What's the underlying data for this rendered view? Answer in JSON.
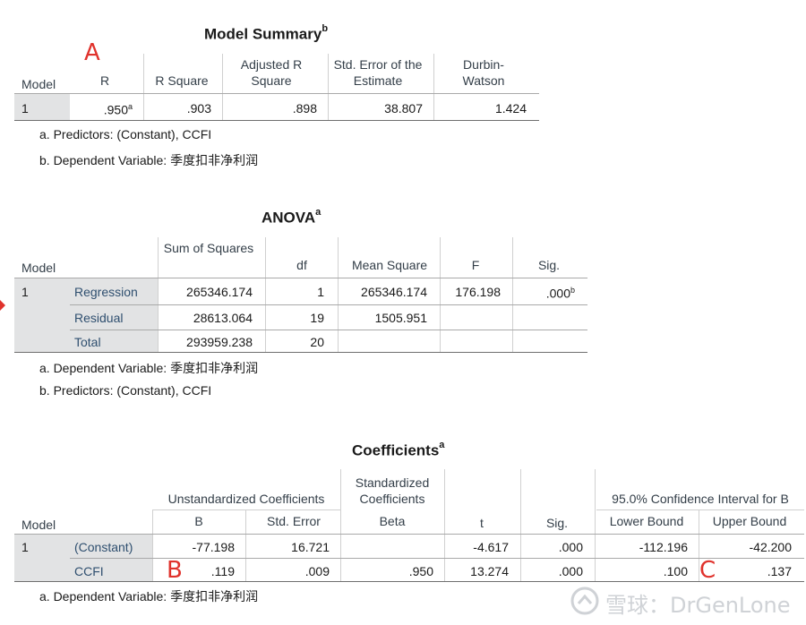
{
  "model_summary": {
    "title": "Model Summary",
    "title_sup": "b",
    "headers": {
      "model": "Model",
      "r": "R",
      "r_square": "R Square",
      "adj_r_square": "Adjusted R Square",
      "std_error": "Std. Error of the Estimate",
      "durbin_watson": "Durbin-Watson"
    },
    "row": {
      "model": "1",
      "r": ".950",
      "r_sup": "a",
      "r_square": ".903",
      "adj_r_square": ".898",
      "std_error": "38.807",
      "durbin_watson": "1.424"
    },
    "notes": [
      "a. Predictors: (Constant), CCFI",
      "b. Dependent Variable: 季度扣非净利润"
    ]
  },
  "anova": {
    "title": "ANOVA",
    "title_sup": "a",
    "headers": {
      "model": "Model",
      "sum_of_squares": "Sum of Squares",
      "df": "df",
      "mean_square": "Mean Square",
      "f": "F",
      "sig": "Sig."
    },
    "model": "1",
    "rows": [
      {
        "label": "Regression",
        "sum_of_squares": "265346.174",
        "df": "1",
        "mean_square": "265346.174",
        "f": "176.198",
        "sig": ".000",
        "sig_sup": "b"
      },
      {
        "label": "Residual",
        "sum_of_squares": "28613.064",
        "df": "19",
        "mean_square": "1505.951",
        "f": "",
        "sig": ""
      },
      {
        "label": "Total",
        "sum_of_squares": "293959.238",
        "df": "20",
        "mean_square": "",
        "f": "",
        "sig": ""
      }
    ],
    "notes": [
      "a. Dependent Variable: 季度扣非净利润",
      "b. Predictors: (Constant), CCFI"
    ]
  },
  "coefficients": {
    "title": "Coefficients",
    "title_sup": "a",
    "headers": {
      "model": "Model",
      "unstd": "Unstandardized Coefficients",
      "std": "Standardized Coefficients",
      "ci": "95.0% Confidence Interval for B",
      "b": "B",
      "std_error": "Std. Error",
      "beta": "Beta",
      "t": "t",
      "sig": "Sig.",
      "lower": "Lower Bound",
      "upper": "Upper Bound"
    },
    "model": "1",
    "rows": [
      {
        "label": "(Constant)",
        "b": "-77.198",
        "std_error": "16.721",
        "beta": "",
        "t": "-4.617",
        "sig": ".000",
        "lower": "-112.196",
        "upper": "-42.200"
      },
      {
        "label": "CCFI",
        "b": ".119",
        "std_error": ".009",
        "beta": ".950",
        "t": "13.274",
        "sig": ".000",
        "lower": ".100",
        "upper": ".137"
      }
    ],
    "notes": [
      "a. Dependent Variable: 季度扣非净利润"
    ]
  },
  "annotations": {
    "a": "A",
    "b": "B",
    "c": "C"
  },
  "watermark": {
    "text": "雪球：DrGenLone"
  },
  "colors": {
    "annotation": "#e0322c",
    "shade": "#e2e3e4",
    "label_text": "#2f4f6f"
  }
}
